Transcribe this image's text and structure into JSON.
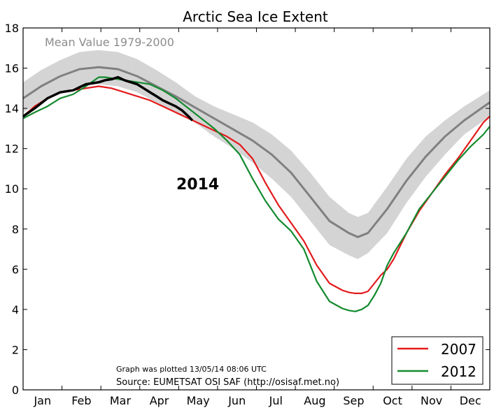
{
  "chart_data": {
    "type": "line",
    "title": "Arctic Sea Ice Extent",
    "xlabel": "",
    "ylabel": "",
    "months": [
      "Jan",
      "Feb",
      "Mar",
      "Apr",
      "May",
      "Jun",
      "Jul",
      "Aug",
      "Sep",
      "Oct",
      "Nov",
      "Dec"
    ],
    "ylim": [
      0,
      18
    ],
    "yticks": [
      0,
      2,
      4,
      6,
      8,
      10,
      12,
      14,
      16,
      18
    ],
    "grid": false,
    "legend_position": "bottom-right",
    "series_label_2014": "2014",
    "annotation_mean": "Mean Value 1979-2000",
    "annotation_plotted": "Graph was plotted 13/05/14 08:06 UTC",
    "annotation_source": "Source: EUMETSAT OSI SAF (http://osisaf.met.no)",
    "mean": {
      "name": "Mean Value 1979-2000",
      "color": "#808080",
      "x": [
        1,
        15,
        30,
        45,
        60,
        75,
        90,
        105,
        120,
        135,
        150,
        165,
        180,
        195,
        210,
        225,
        240,
        255,
        262,
        270,
        285,
        300,
        315,
        330,
        345,
        365
      ],
      "y": [
        14.5,
        15.1,
        15.6,
        15.95,
        16.05,
        15.95,
        15.6,
        15.1,
        14.6,
        14.05,
        13.5,
        12.95,
        12.4,
        11.7,
        10.8,
        9.6,
        8.4,
        7.8,
        7.6,
        7.8,
        9.0,
        10.4,
        11.6,
        12.6,
        13.4,
        14.3
      ]
    },
    "band": {
      "color": "#d4d4d4",
      "x": [
        1,
        15,
        30,
        45,
        60,
        75,
        90,
        105,
        120,
        135,
        150,
        165,
        180,
        195,
        210,
        225,
        240,
        255,
        262,
        270,
        285,
        300,
        315,
        330,
        345,
        365
      ],
      "upper": [
        15.3,
        15.9,
        16.4,
        16.8,
        16.9,
        16.8,
        16.45,
        15.9,
        15.3,
        14.6,
        14.1,
        13.7,
        13.3,
        12.7,
        11.9,
        10.8,
        9.6,
        8.8,
        8.6,
        8.8,
        10.1,
        11.5,
        12.6,
        13.4,
        14.1,
        14.9
      ],
      "lower": [
        13.8,
        14.3,
        14.8,
        15.1,
        15.2,
        15.1,
        14.8,
        14.3,
        13.8,
        13.3,
        12.6,
        12.0,
        11.3,
        10.5,
        9.6,
        8.4,
        7.2,
        6.7,
        6.5,
        6.8,
        7.8,
        9.3,
        10.6,
        11.7,
        12.7,
        13.6
      ]
    },
    "series": [
      {
        "name": "2007",
        "color": "#e41a1c",
        "x": [
          1,
          10,
          20,
          30,
          40,
          50,
          60,
          70,
          80,
          90,
          100,
          110,
          120,
          130,
          140,
          150,
          160,
          170,
          180,
          190,
          200,
          210,
          220,
          230,
          240,
          250,
          255,
          260,
          265,
          270,
          275,
          280,
          285,
          290,
          300,
          310,
          320,
          330,
          340,
          350,
          360,
          365
        ],
        "y": [
          13.6,
          14.1,
          14.5,
          14.8,
          14.9,
          15.0,
          15.1,
          15.0,
          14.8,
          14.6,
          14.4,
          14.1,
          13.8,
          13.5,
          13.2,
          12.9,
          12.6,
          12.2,
          11.5,
          10.3,
          9.2,
          8.3,
          7.4,
          6.2,
          5.3,
          4.95,
          4.85,
          4.8,
          4.8,
          4.9,
          5.3,
          5.7,
          6.0,
          6.5,
          7.8,
          8.9,
          9.8,
          10.7,
          11.5,
          12.4,
          13.3,
          13.6
        ]
      },
      {
        "name": "2012",
        "color": "#138a2e",
        "x": [
          1,
          10,
          20,
          30,
          40,
          50,
          60,
          65,
          70,
          80,
          90,
          100,
          110,
          120,
          130,
          140,
          150,
          160,
          170,
          180,
          190,
          200,
          210,
          220,
          230,
          240,
          250,
          255,
          260,
          265,
          270,
          275,
          280,
          285,
          290,
          300,
          310,
          320,
          330,
          340,
          350,
          360,
          365
        ],
        "y": [
          13.5,
          13.8,
          14.1,
          14.5,
          14.7,
          15.1,
          15.55,
          15.55,
          15.5,
          15.4,
          15.3,
          15.2,
          14.9,
          14.5,
          14.0,
          13.5,
          13.0,
          12.4,
          11.7,
          10.5,
          9.4,
          8.5,
          7.9,
          7.0,
          5.4,
          4.4,
          4.05,
          3.95,
          3.9,
          4.0,
          4.2,
          4.7,
          5.3,
          6.2,
          6.8,
          7.8,
          9.0,
          9.8,
          10.6,
          11.4,
          12.1,
          12.7,
          13.1
        ]
      },
      {
        "name": "2014",
        "color": "#000000",
        "x": [
          1,
          10,
          20,
          30,
          40,
          50,
          60,
          65,
          70,
          75,
          80,
          85,
          90,
          95,
          100,
          105,
          110,
          115,
          120,
          125,
          130,
          133
        ],
        "y": [
          13.6,
          14.0,
          14.5,
          14.8,
          14.9,
          15.2,
          15.3,
          15.4,
          15.45,
          15.55,
          15.4,
          15.3,
          15.2,
          15.0,
          14.8,
          14.6,
          14.4,
          14.25,
          14.1,
          13.9,
          13.6,
          13.4
        ]
      }
    ]
  }
}
